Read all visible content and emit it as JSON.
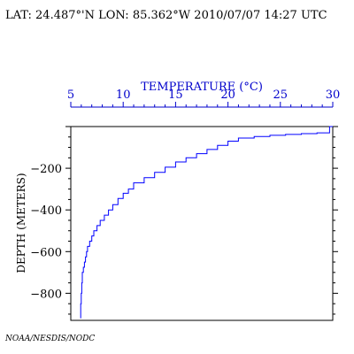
{
  "header": {
    "text": "LAT: 24.487°'N LON: 85.362°W 2010/07/07 14:27 UTC"
  },
  "credit": "NOAA/NESDIS/NODC",
  "colors": {
    "profile": "#0000ff",
    "x_axis": "#0000cc",
    "y_axis": "#000000"
  },
  "chart_data": {
    "type": "line",
    "title": "",
    "xlabel": "TEMPERATURE (°C)",
    "ylabel": "DEPTH (METERS)",
    "x_axis_position": "top",
    "xlim": [
      5,
      30
    ],
    "ylim": [
      -930,
      0
    ],
    "xticks": [
      5,
      10,
      15,
      20,
      25,
      30
    ],
    "xtick_labels": [
      "5",
      "10",
      "15",
      "20",
      "25",
      "30"
    ],
    "yticks": [
      -200,
      -400,
      -600,
      -800
    ],
    "ytick_labels": [
      "−200",
      "−400",
      "−600",
      "−800"
    ],
    "grid": false,
    "series": [
      {
        "x": [
          30.0,
          29.7,
          29.7,
          28.5,
          27.0,
          25.5,
          24.0,
          22.5,
          21.0,
          20.0,
          19.0,
          18.0,
          17.0,
          16.0,
          15.0,
          14.0,
          13.0,
          12.0,
          11.0,
          10.5,
          10.0,
          9.5,
          9.0,
          8.6,
          8.2,
          7.8,
          7.5,
          7.2,
          7.0,
          6.8,
          6.6,
          6.5,
          6.4,
          6.3,
          6.2,
          6.1,
          6.05,
          6.0,
          5.95,
          5.95
        ],
        "y": [
          0,
          -20,
          -30,
          -34,
          -38,
          -42,
          -48,
          -55,
          -70,
          -90,
          -110,
          -130,
          -150,
          -170,
          -195,
          -220,
          -245,
          -270,
          -300,
          -320,
          -345,
          -375,
          -400,
          -425,
          -450,
          -475,
          -500,
          -525,
          -550,
          -575,
          -600,
          -625,
          -650,
          -675,
          -700,
          -750,
          -800,
          -850,
          -900,
          -920
        ]
      }
    ]
  }
}
